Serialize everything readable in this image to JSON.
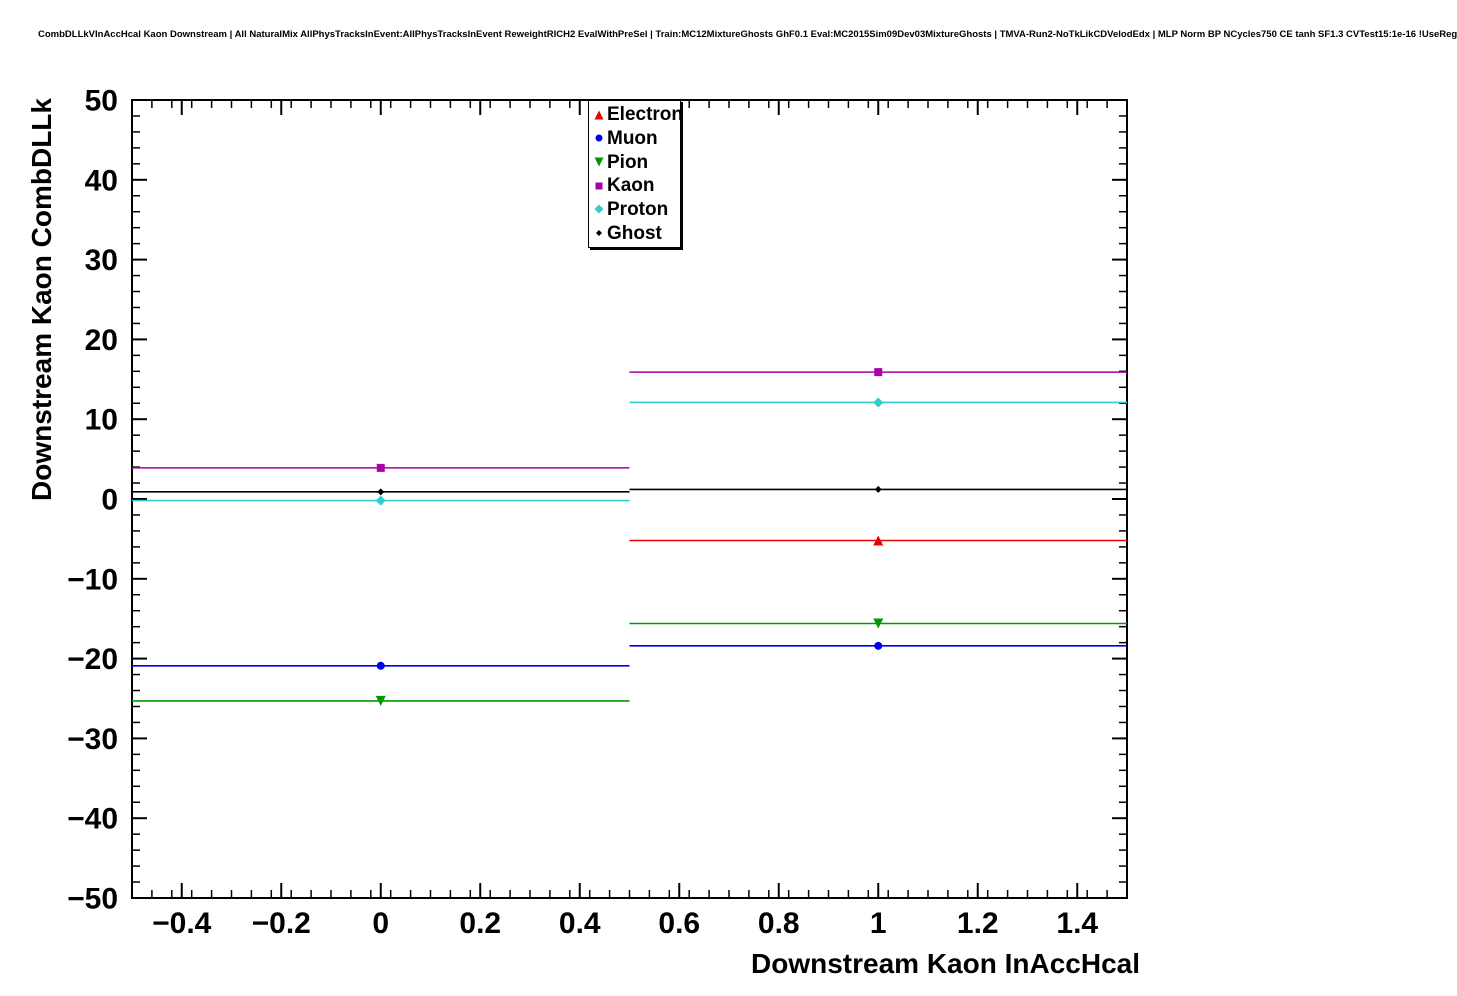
{
  "chart_data": {
    "type": "scatter",
    "title": "CombDLLkVInAccHcal Kaon Downstream | All NaturalMix AllPhysTracksInEvent:AllPhysTracksInEvent ReweightRICH2 EvalWithPreSel | Train:MC12MixtureGhosts GhF0.1 Eval:MC2015Sim09Dev03MixtureGhosts | TMVA-Run2-NoTkLikCDVelodEdx | MLP Norm BP NCycles750 CE tanh SF1.3 CVTest15:1e-16 !UseReg",
    "xlabel": "Downstream Kaon InAccHcal",
    "ylabel": "Downstream Kaon CombDLLk",
    "xlim": [
      -0.5,
      1.5
    ],
    "ylim": [
      -50,
      50
    ],
    "x_major_ticks": [
      -0.4,
      -0.2,
      0,
      0.2,
      0.4,
      0.6,
      0.8,
      1,
      1.2,
      1.4
    ],
    "y_major_ticks": [
      -50,
      -40,
      -30,
      -20,
      -10,
      0,
      10,
      20,
      30,
      40,
      50
    ],
    "x_minor_step": 0.04,
    "y_minor_step": 2,
    "grid": false,
    "legend_position": "top-center",
    "frame_color": "#000000",
    "series": [
      {
        "name": "Electron",
        "color": "#ee0000",
        "marker": "triangle-up",
        "points": [
          {
            "x": 1,
            "y": -5.2,
            "xerr": 0.5
          }
        ]
      },
      {
        "name": "Muon",
        "color": "#0000ee",
        "marker": "circle",
        "points": [
          {
            "x": 0,
            "y": -20.9,
            "xerr": 0.5
          },
          {
            "x": 1,
            "y": -18.4,
            "xerr": 0.5
          }
        ]
      },
      {
        "name": "Pion",
        "color": "#009900",
        "marker": "triangle-down",
        "points": [
          {
            "x": 0,
            "y": -25.3,
            "xerr": 0.5
          },
          {
            "x": 1,
            "y": -15.6,
            "xerr": 0.5
          }
        ]
      },
      {
        "name": "Kaon",
        "color": "#aa00aa",
        "marker": "square",
        "points": [
          {
            "x": 0,
            "y": 3.9,
            "xerr": 0.5
          },
          {
            "x": 1,
            "y": 15.9,
            "xerr": 0.5
          }
        ]
      },
      {
        "name": "Proton",
        "color": "#33cccc",
        "marker": "diamond",
        "points": [
          {
            "x": 0,
            "y": -0.2,
            "xerr": 0.5
          },
          {
            "x": 1,
            "y": 12.1,
            "xerr": 0.5
          }
        ]
      },
      {
        "name": "Ghost",
        "color": "#000000",
        "marker": "diamond-small",
        "points": [
          {
            "x": 0,
            "y": 0.9,
            "xerr": 0.5
          },
          {
            "x": 1,
            "y": 1.2,
            "xerr": 0.5
          }
        ]
      }
    ]
  }
}
